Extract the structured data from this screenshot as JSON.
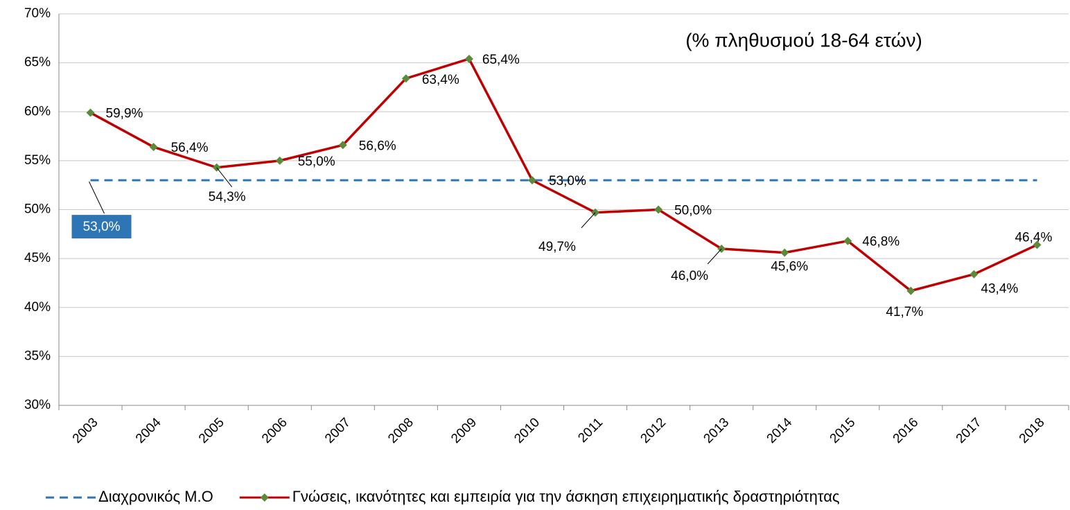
{
  "chart_data": {
    "type": "line",
    "annotation": "(% πληθυσμού 18-64 ετών)",
    "categories": [
      "2003",
      "2004",
      "2005",
      "2006",
      "2007",
      "2008",
      "2009",
      "2010",
      "2011",
      "2012",
      "2013",
      "2014",
      "2015",
      "2016",
      "2017",
      "2018"
    ],
    "series": [
      {
        "name": "Διαχρονικός Μ.Ο",
        "color": "#2e75b6",
        "dashed": true,
        "values": [
          53,
          53,
          53,
          53,
          53,
          53,
          53,
          53,
          53,
          53,
          53,
          53,
          53,
          53,
          53,
          53
        ],
        "value_labels": [
          "53,0%",
          null,
          null,
          null,
          null,
          null,
          null,
          null,
          null,
          null,
          null,
          null,
          null,
          null,
          null,
          null
        ]
      },
      {
        "name": "Γνώσεις, ικανότητες και εμπειρία για την άσκηση επιχειρηματικής δραστηριότητας",
        "color": "#c00000",
        "marker_color": "#5b8a3a",
        "values": [
          59.9,
          56.4,
          54.3,
          55.0,
          56.6,
          63.4,
          65.4,
          53.0,
          49.7,
          50.0,
          46.0,
          45.6,
          46.8,
          41.7,
          43.4,
          46.4
        ],
        "value_labels": [
          "59,9%",
          "56,4%",
          "54,3%",
          "55,0%",
          "56,6%",
          "63,4%",
          "65,4%",
          "53,0%",
          "49,7%",
          "50,0%",
          "46,0%",
          "45,6%",
          "46,8%",
          "41,7%",
          "43,4%",
          "46,4%"
        ]
      }
    ],
    "ylim": [
      30,
      70
    ],
    "yticks": [
      {
        "value": 30,
        "label": "30%"
      },
      {
        "value": 35,
        "label": "35%"
      },
      {
        "value": 40,
        "label": "40%"
      },
      {
        "value": 45,
        "label": "45%"
      },
      {
        "value": 50,
        "label": "50%"
      },
      {
        "value": 55,
        "label": "55%"
      },
      {
        "value": 60,
        "label": "60%"
      },
      {
        "value": 65,
        "label": "65%"
      },
      {
        "value": 70,
        "label": "70%"
      }
    ],
    "grid": true,
    "legend": "bottom"
  }
}
